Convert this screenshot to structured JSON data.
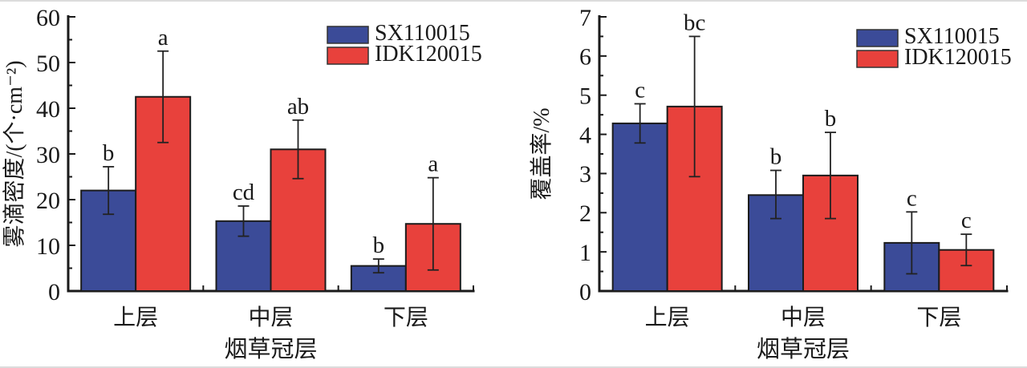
{
  "figure": {
    "background": "#ffffff",
    "axis_color": "#1a1a1a",
    "error_bar_color": "#222222",
    "series_colors": {
      "SX110015": "#3b4b98",
      "IDK120015": "#e8413c"
    }
  },
  "chart_data": [
    {
      "type": "bar",
      "title": "",
      "xlabel": "烟草冠层",
      "ylabel": "雾滴密度/(个·cm⁻²)",
      "categories": [
        "上层",
        "中层",
        "下层"
      ],
      "ylim": [
        0,
        60
      ],
      "ytick_step": 10,
      "yminor_step": 5,
      "ytick_labels": [
        "0",
        "10",
        "20",
        "30",
        "40",
        "50",
        "60"
      ],
      "grid": false,
      "legend_position": "top-right-inside",
      "legend_labels": [
        "SX110015",
        "IDK120015"
      ],
      "series": [
        {
          "name": "SX110015",
          "color": "#3b4b98",
          "values": [
            22,
            15.3,
            5.5
          ],
          "err_low": [
            16.8,
            12.0,
            4.0
          ],
          "err_high": [
            27.2,
            18.6,
            7.0
          ],
          "letters": [
            "b",
            "cd",
            "b"
          ]
        },
        {
          "name": "IDK120015",
          "color": "#e8413c",
          "values": [
            42.5,
            31.0,
            14.7
          ],
          "err_low": [
            32.5,
            24.6,
            4.6
          ],
          "err_high": [
            52.5,
            37.4,
            24.8
          ],
          "letters": [
            "a",
            "ab",
            "a"
          ]
        }
      ]
    },
    {
      "type": "bar",
      "title": "",
      "xlabel": "烟草冠层",
      "ylabel": "覆盖率/%",
      "categories": [
        "上层",
        "中层",
        "下层"
      ],
      "ylim": [
        0,
        7
      ],
      "ytick_step": 1,
      "yminor_step": 0.5,
      "ytick_labels": [
        "0",
        "1",
        "2",
        "3",
        "4",
        "5",
        "6",
        "7"
      ],
      "grid": false,
      "legend_position": "top-right-inside",
      "legend_labels": [
        "SX110015",
        "IDK120015"
      ],
      "series": [
        {
          "name": "SX110015",
          "color": "#3b4b98",
          "values": [
            4.28,
            2.45,
            1.23
          ],
          "err_low": [
            3.78,
            1.85,
            0.44
          ],
          "err_high": [
            4.78,
            3.08,
            2.02
          ],
          "letters": [
            "c",
            "b",
            "c"
          ]
        },
        {
          "name": "IDK120015",
          "color": "#e8413c",
          "values": [
            4.71,
            2.95,
            1.05
          ],
          "err_low": [
            2.92,
            1.85,
            0.65
          ],
          "err_high": [
            6.5,
            4.05,
            1.45
          ],
          "letters": [
            "bc",
            "b",
            "c"
          ]
        }
      ]
    }
  ]
}
